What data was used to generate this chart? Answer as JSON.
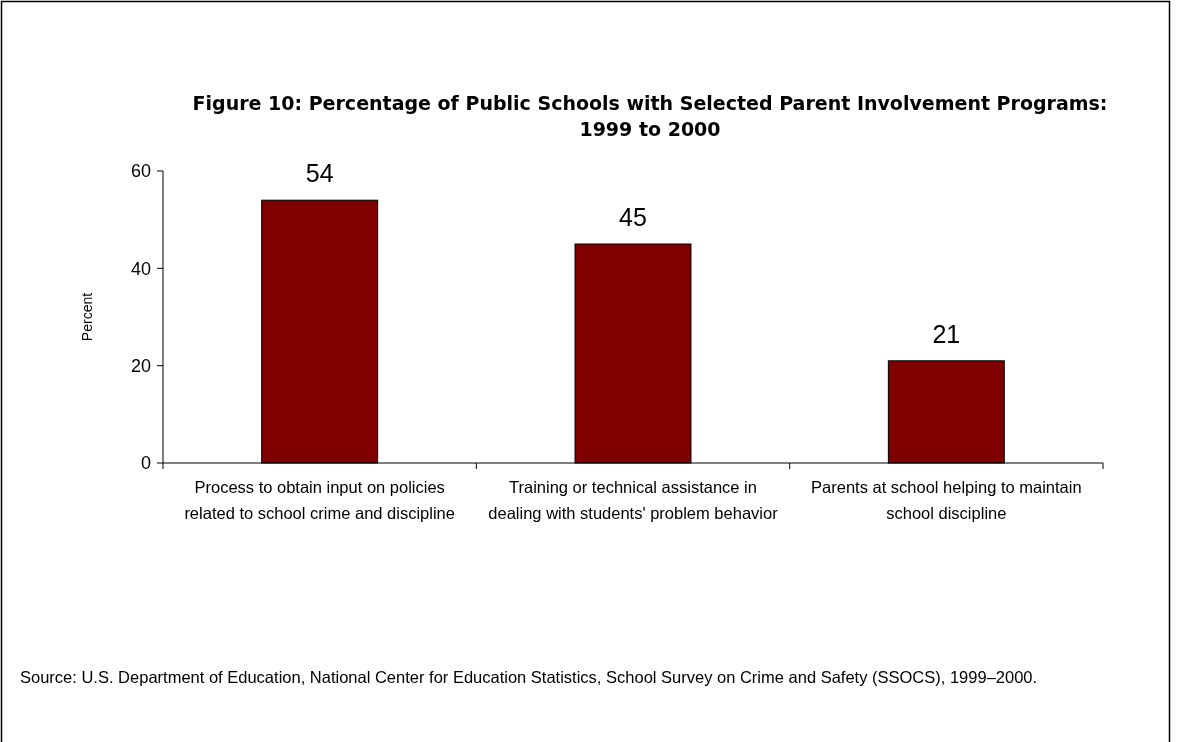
{
  "chart_data": {
    "type": "bar",
    "title": "Figure 10: Percentage of Public Schools with Selected Parent Involvement Programs: 1999 to 2000",
    "ylabel": "Percent",
    "categories": [
      "Process to obtain input on policies related to school crime and discipline",
      "Training or technical assistance in dealing with students' problem behavior",
      "Parents at school helping to maintain school discipline"
    ],
    "values": [
      54,
      45,
      21
    ],
    "color": "#800000",
    "ylim": [
      0,
      60
    ],
    "yticks": [
      0,
      20,
      40,
      60
    ],
    "data_labels": true,
    "annotations": [
      "Source: U.S. Department of Education, National Center for Education Statistics, School Survey on Crime and Safety (SSOCS), 1999–2000."
    ]
  }
}
